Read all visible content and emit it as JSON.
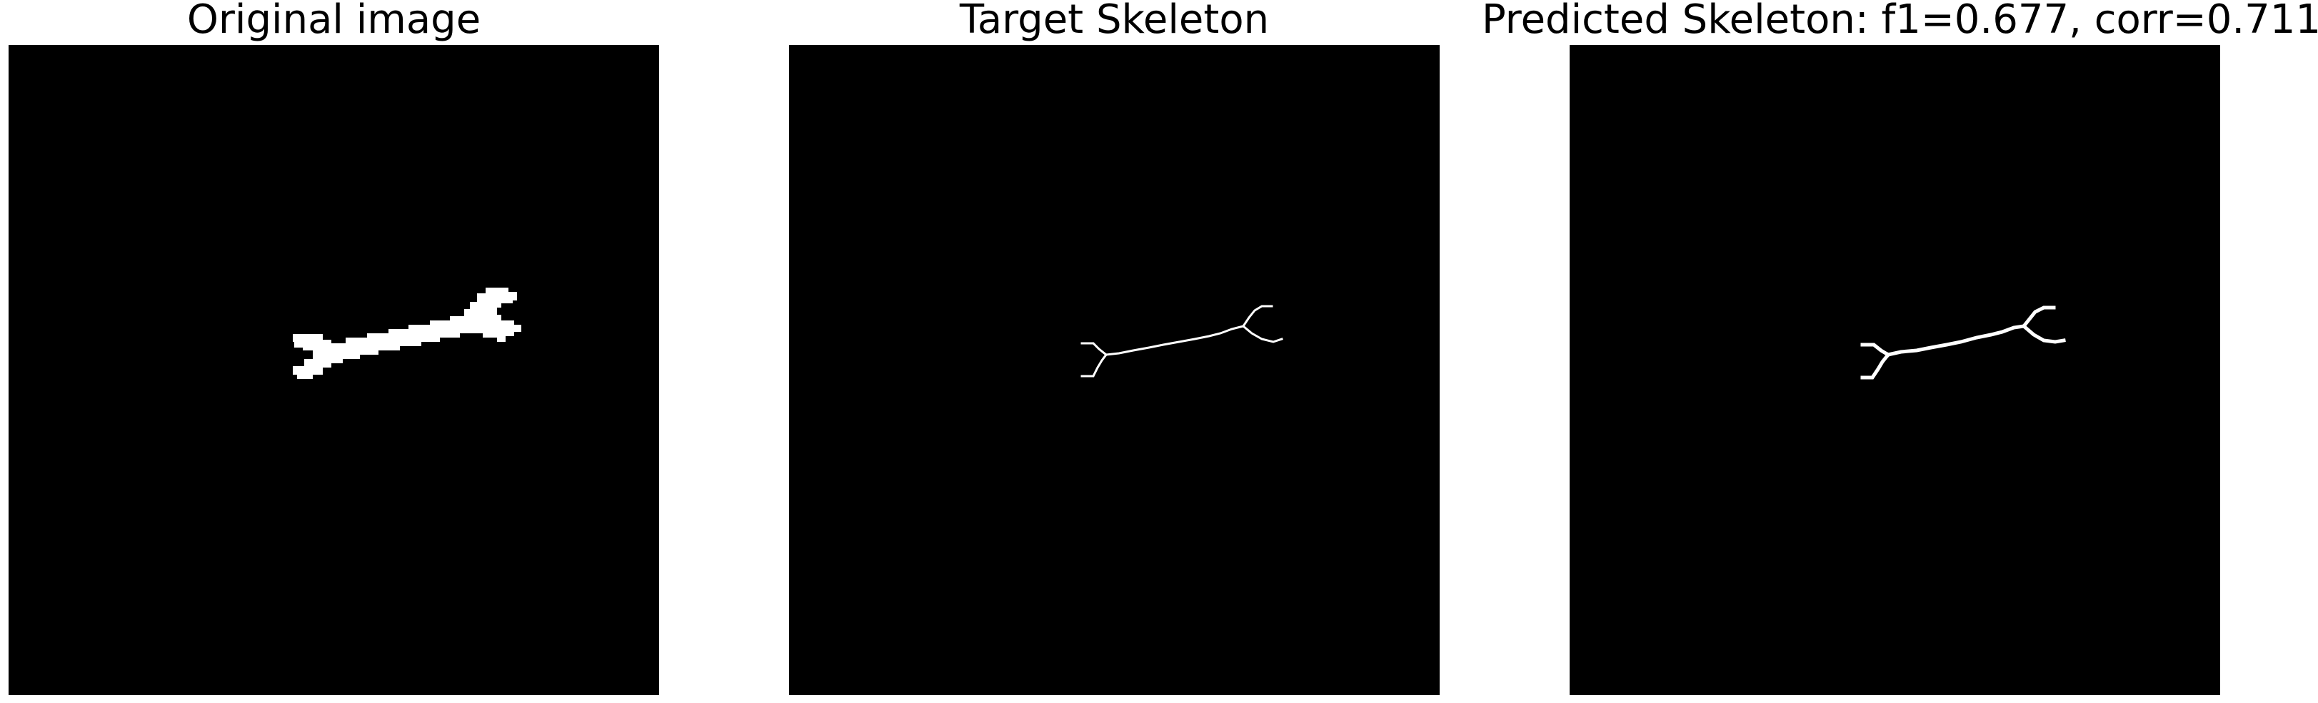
{
  "panels": [
    {
      "title": "Original image"
    },
    {
      "title": "Target Skeleton"
    },
    {
      "title": "Predicted Skeleton: f1=0.677, corr=0.711"
    }
  ],
  "colors": {
    "background": "#000000",
    "foreground": "#ffffff"
  }
}
